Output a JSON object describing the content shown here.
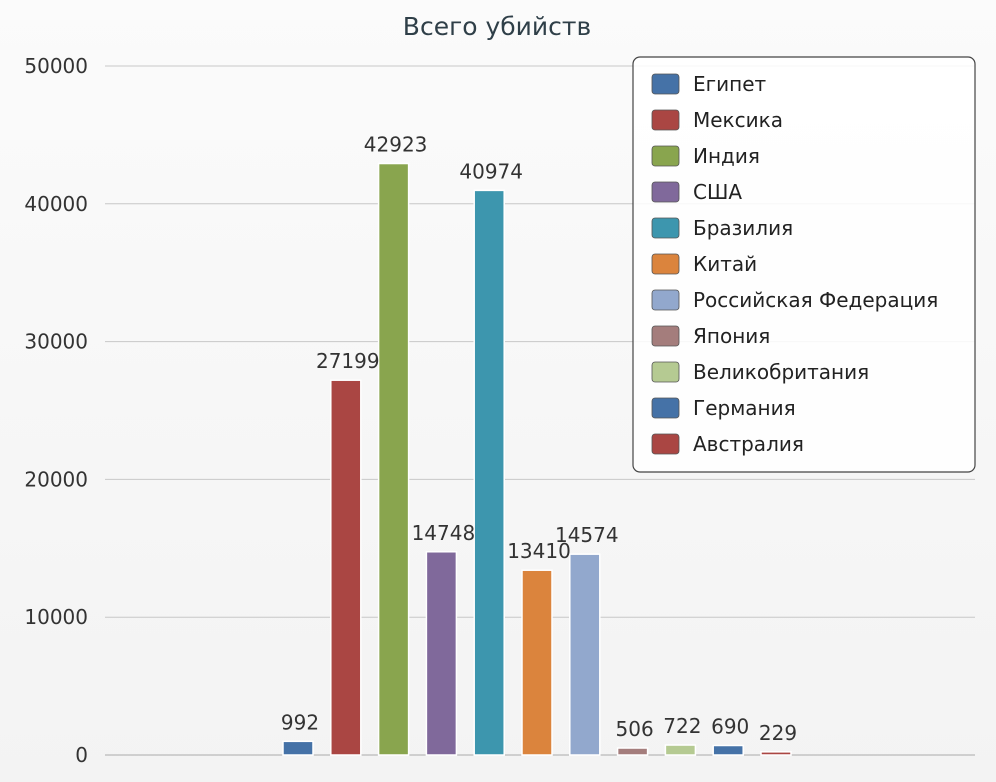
{
  "chart_data": {
    "type": "bar",
    "title": "Всего убийств",
    "xlabel": "",
    "ylabel": "",
    "ylim": [
      0,
      50000
    ],
    "yticks": [
      0,
      10000,
      20000,
      30000,
      40000,
      50000
    ],
    "grid": true,
    "legend_position": "top-right",
    "series": [
      {
        "name": "Египет",
        "value": 992,
        "color": "#4572a7"
      },
      {
        "name": "Мексика",
        "value": 27199,
        "color": "#aa4643"
      },
      {
        "name": "Индия",
        "value": 42923,
        "color": "#89a54e"
      },
      {
        "name": "США",
        "value": 14748,
        "color": "#80699b"
      },
      {
        "name": "Бразилия",
        "value": 40974,
        "color": "#3d96ae"
      },
      {
        "name": "Китай",
        "value": 13410,
        "color": "#db843d"
      },
      {
        "name": "Российская Федерация",
        "value": 14574,
        "color": "#92a8cd"
      },
      {
        "name": "Япония",
        "value": 506,
        "color": "#a47d7c"
      },
      {
        "name": "Великобритания",
        "value": 722,
        "color": "#b5ca92"
      },
      {
        "name": "Германия",
        "value": 690,
        "color": "#4572a7"
      },
      {
        "name": "Австралия",
        "value": 229,
        "color": "#aa4643"
      }
    ]
  }
}
